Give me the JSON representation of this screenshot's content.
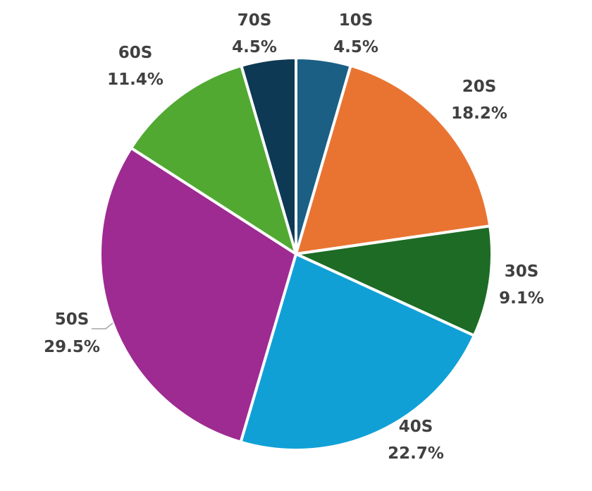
{
  "chart_data": {
    "type": "pie",
    "categories": [
      "10S",
      "20S",
      "30S",
      "40S",
      "50S",
      "60S",
      "70S"
    ],
    "values": [
      4.5,
      18.2,
      9.1,
      22.7,
      29.5,
      11.4,
      4.5
    ],
    "value_labels": [
      "4.5%",
      "18.2%",
      "9.1%",
      "22.7%",
      "29.5%",
      "11.4%",
      "4.5%"
    ],
    "colors": [
      "#1b5f85",
      "#e97432",
      "#1d6b25",
      "#10a0d6",
      "#9e2b91",
      "#51a932",
      "#0e3954"
    ],
    "legend": "none",
    "data_labels": "outside"
  }
}
